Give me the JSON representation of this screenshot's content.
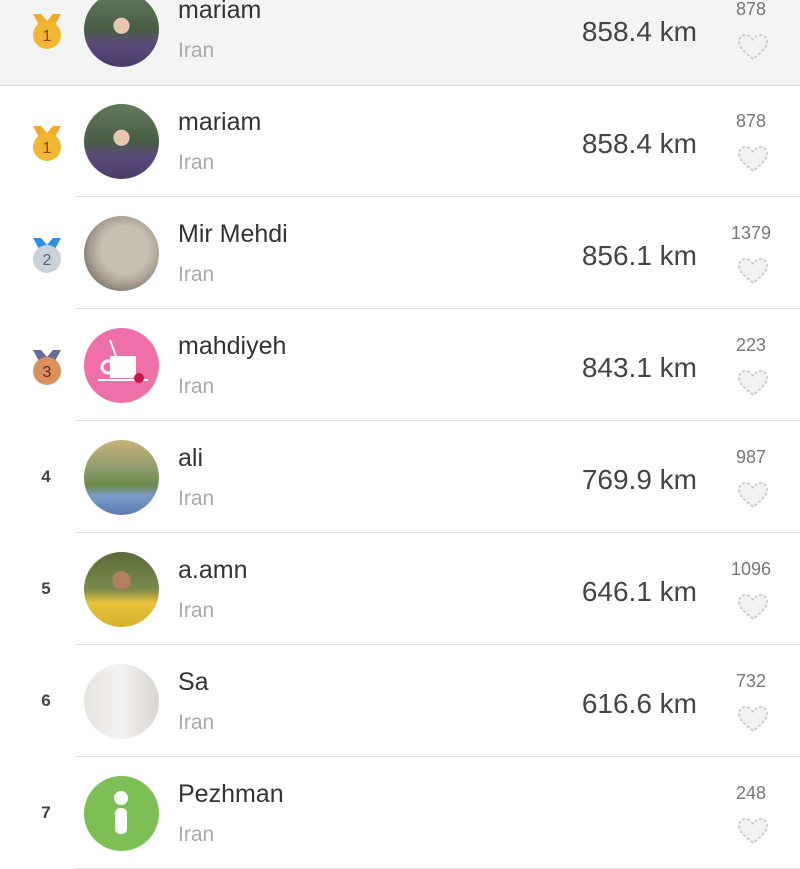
{
  "pinned": {
    "rank": 1,
    "name": "mariam",
    "country": "Iran",
    "distance": "858.4 km",
    "likes": "878"
  },
  "rows": [
    {
      "rank": 1,
      "name": "mariam",
      "country": "Iran",
      "distance": "858.4 km",
      "likes": "878",
      "medal": "gold",
      "avatar": "photo-woman-cap"
    },
    {
      "rank": 2,
      "name": "Mir Mehdi",
      "country": "Iran",
      "distance": "856.1 km",
      "likes": "1379",
      "medal": "silver",
      "avatar": "photo-blurred"
    },
    {
      "rank": 3,
      "name": "mahdiyeh",
      "country": "Iran",
      "distance": "843.1 km",
      "likes": "223",
      "medal": "bronze",
      "avatar": "coffee-cup-pink"
    },
    {
      "rank": 4,
      "name": "ali",
      "country": "Iran",
      "distance": "769.9 km",
      "likes": "987",
      "avatar": "photo-man-garden"
    },
    {
      "rank": 5,
      "name": "a.amn",
      "country": "Iran",
      "distance": "646.1 km",
      "likes": "1096",
      "avatar": "photo-man-yellow"
    },
    {
      "rank": 6,
      "name": "Sa",
      "country": "Iran",
      "distance": "616.6 km",
      "likes": "732",
      "avatar": "photo-boy-white"
    },
    {
      "rank": 7,
      "name": "Pezhman",
      "country": "Iran",
      "distance": "",
      "likes": "248",
      "avatar": "default-green-person"
    }
  ],
  "colors": {
    "gold": "#f2b534",
    "silver": "#c9d1da",
    "bronze": "#d9905f",
    "pink": "#ef6fa8",
    "green": "#7dbf55"
  }
}
